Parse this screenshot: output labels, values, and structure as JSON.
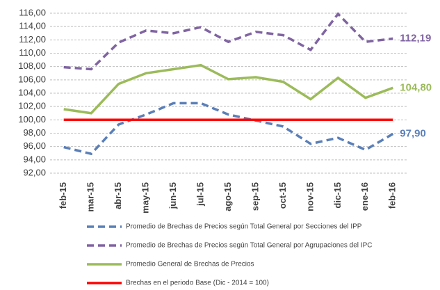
{
  "chart_data": {
    "type": "line",
    "categories": [
      "feb-15",
      "mar-15",
      "abr-15",
      "may-15",
      "jun-15",
      "jul-15",
      "ago-15",
      "sep-15",
      "oct-15",
      "nov-15",
      "dic-15",
      "ene-16",
      "feb-16"
    ],
    "series": [
      {
        "name": "Promedio de Brechas de Precios según Total General por Secciones del IPP",
        "color": "#5a7fb8",
        "style": "dashed",
        "values": [
          95.9,
          94.9,
          99.3,
          100.8,
          102.5,
          102.5,
          100.8,
          99.9,
          99.0,
          96.4,
          97.3,
          95.5,
          97.9
        ],
        "value_labels": [
          null,
          null,
          null,
          null,
          null,
          null,
          null,
          null,
          null,
          null,
          null,
          null,
          "97,90"
        ]
      },
      {
        "name": "Promedio de Brechas de Precios según Total General por Agrupaciones del IPC",
        "color": "#8064a2",
        "style": "dashed",
        "values": [
          107.9,
          107.6,
          111.6,
          113.4,
          113.0,
          113.9,
          111.7,
          113.2,
          112.7,
          110.5,
          115.9,
          111.7,
          112.19
        ],
        "value_labels": [
          null,
          null,
          null,
          null,
          null,
          null,
          null,
          null,
          null,
          null,
          null,
          null,
          "112,19"
        ]
      },
      {
        "name": "Promedio General de Brechas de Precios",
        "color": "#9bbb59",
        "style": "solid",
        "values": [
          101.6,
          101.0,
          105.4,
          107.0,
          107.6,
          108.2,
          106.1,
          106.4,
          105.7,
          103.1,
          106.3,
          103.3,
          104.8
        ],
        "value_labels": [
          null,
          null,
          null,
          null,
          null,
          null,
          null,
          null,
          null,
          null,
          null,
          null,
          "104,80"
        ]
      },
      {
        "name": "Brechas en el periodo Base (Dic - 2014 = 100)",
        "color": "#ff0000",
        "style": "solid",
        "values": [
          100,
          100,
          100,
          100,
          100,
          100,
          100,
          100,
          100,
          100,
          100,
          100,
          100
        ]
      }
    ],
    "ylim": [
      92,
      116
    ],
    "yticks": [
      {
        "value": 92,
        "label": "92,00"
      },
      {
        "value": 94,
        "label": "94,00"
      },
      {
        "value": 96,
        "label": "96,00"
      },
      {
        "value": 98,
        "label": "98,00"
      },
      {
        "value": 100,
        "label": "100,00"
      },
      {
        "value": 102,
        "label": "102,00"
      },
      {
        "value": 104,
        "label": "104,00"
      },
      {
        "value": 106,
        "label": "106,00"
      },
      {
        "value": 108,
        "label": "108,00"
      },
      {
        "value": 110,
        "label": "110,00"
      },
      {
        "value": 112,
        "label": "112,00"
      },
      {
        "value": 114,
        "label": "114,00"
      },
      {
        "value": 116,
        "label": "116,00"
      }
    ],
    "grid": true
  }
}
